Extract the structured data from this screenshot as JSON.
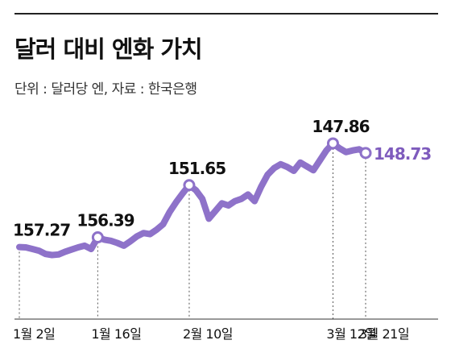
{
  "header": {
    "title": "달러 대비 엔화 가치",
    "subtitle": "단위 : 달러당 엔, 자료 : 한국은행"
  },
  "colors": {
    "line": "#8e72c9",
    "accent": "#7e5bbd",
    "marker_fill": "#ffffff",
    "guide": "#555555",
    "axis": "#333333"
  },
  "chart_data": {
    "type": "line",
    "title": "달러 대비 엔화 가치",
    "subtitle": "단위 : 달러당 엔, 자료 : 한국은행",
    "ylim": [
      146.4,
      158.4
    ],
    "y_inverted": true,
    "grid": false,
    "x_tick_labels": [
      "1월 2일",
      "1월 16일",
      "2월 10일",
      "3월 12일",
      "3월 21일"
    ],
    "labeled_points": [
      {
        "x": "1월 2일",
        "y": 157.27,
        "label": "157.27"
      },
      {
        "x": "1월 16일",
        "y": 156.39,
        "label": "156.39"
      },
      {
        "x": "2월 10일",
        "y": 151.65,
        "label": "151.65"
      },
      {
        "x": "3월 12일",
        "y": 147.86,
        "label": "147.86"
      },
      {
        "x": "3월 21일",
        "y": 148.73,
        "label": "148.73"
      }
    ],
    "series": [
      {
        "values": [
          157.27,
          157.3,
          157.45,
          157.6,
          157.9,
          158.0,
          157.95,
          157.7,
          157.5,
          157.3,
          157.15,
          157.45,
          156.39,
          156.6,
          156.7,
          156.9,
          157.15,
          156.75,
          156.3,
          156.0,
          156.1,
          155.7,
          155.2,
          154.1,
          153.2,
          152.4,
          151.65,
          152.1,
          152.9,
          154.7,
          154.0,
          153.3,
          153.5,
          153.1,
          152.9,
          152.5,
          153.1,
          151.8,
          150.7,
          150.1,
          149.75,
          150.0,
          150.35,
          149.6,
          149.95,
          150.3,
          149.4,
          148.5,
          147.86,
          148.3,
          148.65,
          148.5,
          148.4,
          148.73
        ]
      }
    ]
  }
}
